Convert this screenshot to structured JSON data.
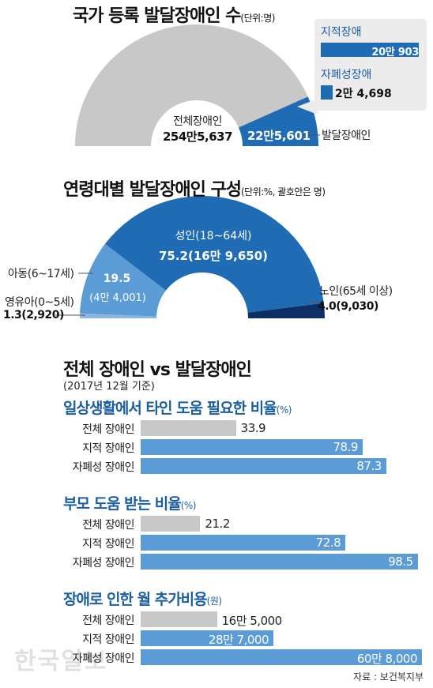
{
  "chart_data": [
    {
      "type": "pie",
      "title": "국가 등록 발달장애인 수",
      "unit": "(단위:명)",
      "total_label": "전체장애인",
      "total_value": "254만5,637",
      "dev_value": "22만5,601",
      "dev_label": "발달장애인",
      "values": [
        2545637,
        225601
      ],
      "callout": [
        {
          "name": "지적장애",
          "value": "20만 903",
          "number": 200903
        },
        {
          "name": "자폐성장애",
          "value": "2만 4,698",
          "number": 24698
        }
      ]
    },
    {
      "type": "pie",
      "title": "연령대별 발달장애인 구성",
      "unit": "(단위:%, 괄호안은 명)",
      "slices": [
        {
          "name": "영유아(0~5세)",
          "value": 1.3,
          "text": "1.3(2,920)",
          "color": "#8ab6e0"
        },
        {
          "name": "아동(6~17세)",
          "value": 19.5,
          "line1": "19.5",
          "line2": "(4만 4,001)",
          "color": "#5b9bd6"
        },
        {
          "name": "성인(18~64세)",
          "value": 75.2,
          "line1": "성인(18~64세)",
          "line2": "75.2(16만 9,650)",
          "color": "#1f6cb5"
        },
        {
          "name": "노인(65세 이상)",
          "value": 4.0,
          "text": "4.0(9,030)",
          "color": "#0d2f66"
        }
      ]
    },
    {
      "type": "bar",
      "title": "전체 장애인 vs 발달장애인",
      "subtitle": "(2017년 12월 기준)",
      "groups": [
        {
          "title": "일상생활에서 타인 도움 필요한 비율",
          "unit": "(%)",
          "categories": [
            "전체 장애인",
            "지적 장애인",
            "자폐성 장애인"
          ],
          "values": [
            33.9,
            78.9,
            87.3
          ],
          "labels": [
            "33.9",
            "78.9",
            "87.3"
          ],
          "max": 100
        },
        {
          "title": "부모 도움 받는 비율",
          "unit": "(%)",
          "categories": [
            "전체 장애인",
            "지적 장애인",
            "자폐성 장애인"
          ],
          "values": [
            21.2,
            72.8,
            98.5
          ],
          "labels": [
            "21.2",
            "72.8",
            "98.5"
          ],
          "max": 100
        },
        {
          "title": "장애로 인한 월 추가비용",
          "unit": "(원)",
          "categories": [
            "전체 장애인",
            "지적 장애인",
            "자폐성 장애인"
          ],
          "values": [
            165000,
            287000,
            608000
          ],
          "labels": [
            "16만 5,000",
            "28만 7,000",
            "60만 8,000"
          ],
          "max": 608000
        }
      ]
    }
  ],
  "colors": {
    "gray": "#c8c8c8",
    "blue": "#5b9bd6",
    "dark_blue": "#1f6cb5",
    "title_blue": "#1b5fa3"
  },
  "source": "자료 : 보건복지부",
  "watermark": "한국일보"
}
